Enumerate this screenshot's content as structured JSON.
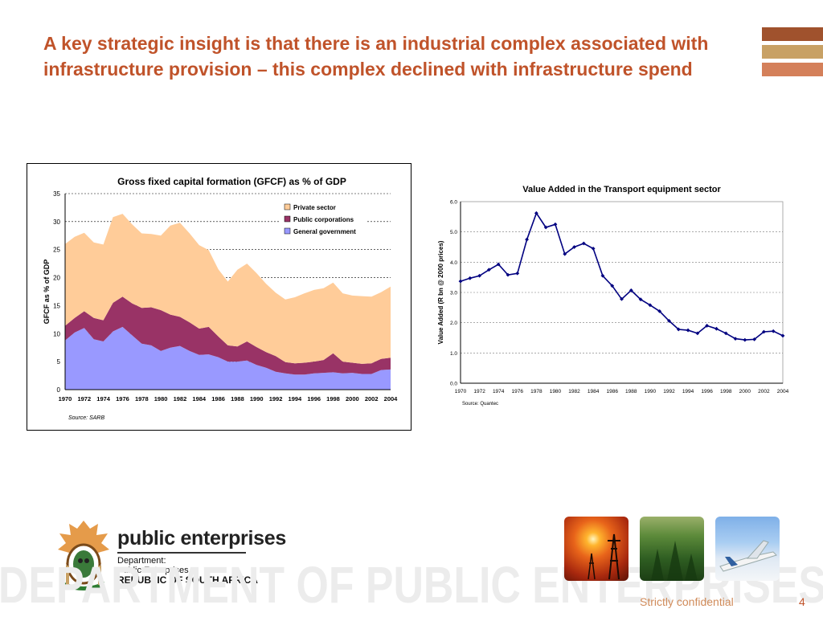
{
  "slide": {
    "title": "A key strategic insight is that there is an industrial complex associated with infrastructure provision – this complex declined with infrastructure spend",
    "page_number": "4",
    "confidentiality": "Strictly confidential",
    "accent_bars": [
      "#a0522d",
      "#c8a165",
      "#d4805a"
    ],
    "title_color": "#c0532a"
  },
  "logo": {
    "brand": "public enterprises",
    "lines": [
      "Department:",
      "Public Enterprises",
      "REPUBLIC OF SOUTH AFRICA"
    ],
    "watermark_text": "DEPARTMENT OF PUBLIC ENTERPRISES"
  },
  "photos": [
    {
      "name": "sunset-pylons-photo"
    },
    {
      "name": "forest-photo"
    },
    {
      "name": "airplane-photo"
    }
  ],
  "chart_data": [
    {
      "type": "area",
      "stacked": true,
      "title": "Gross fixed capital formation (GFCF) as % of GDP",
      "xlabel": "",
      "ylabel": "GFCF as % of GDP",
      "ylim": [
        0,
        35
      ],
      "yticks": [
        0,
        5,
        10,
        15,
        20,
        25,
        30,
        35
      ],
      "xtick_labels": [
        "1970",
        "1972",
        "1974",
        "1976",
        "1978",
        "1980",
        "1982",
        "1984",
        "1986",
        "1988",
        "1990",
        "1992",
        "1994",
        "1996",
        "1998",
        "2000",
        "2002",
        "2004"
      ],
      "x": [
        1970,
        1971,
        1972,
        1973,
        1974,
        1975,
        1976,
        1977,
        1978,
        1979,
        1980,
        1981,
        1982,
        1983,
        1984,
        1985,
        1986,
        1987,
        1988,
        1989,
        1990,
        1991,
        1992,
        1993,
        1994,
        1995,
        1996,
        1997,
        1998,
        1999,
        2000,
        2001,
        2002,
        2003,
        2004
      ],
      "legend_position": "top-right",
      "grid": true,
      "source": "Source: SARB",
      "series": [
        {
          "name": "General government",
          "color": "#9999ff",
          "values": [
            8.8,
            10.2,
            11,
            9,
            8.6,
            10.4,
            11.2,
            9.7,
            8.2,
            7.9,
            6.9,
            7.5,
            7.8,
            6.9,
            6.2,
            6.3,
            5.8,
            5,
            5,
            5.2,
            4.4,
            3.9,
            3.2,
            2.9,
            2.7,
            2.7,
            2.9,
            3,
            3.1,
            2.9,
            3,
            2.8,
            2.8,
            3.5,
            3.6
          ]
        },
        {
          "name": "Public corporations",
          "color": "#993366",
          "values": [
            2.6,
            2.6,
            3,
            3.8,
            3.8,
            5.1,
            5.4,
            5.7,
            6.4,
            6.8,
            7.3,
            5.9,
            5.2,
            5.1,
            4.7,
            4.9,
            3.7,
            2.9,
            2.7,
            3.4,
            3.2,
            2.8,
            2.8,
            2,
            2,
            2.1,
            2.1,
            2.3,
            3.4,
            2.1,
            1.8,
            1.8,
            1.9,
            2,
            2.1
          ]
        },
        {
          "name": "Private sector",
          "color": "#ffcc99",
          "values": [
            14.6,
            14.5,
            14,
            13.5,
            13.5,
            15.3,
            14.8,
            14.1,
            13.3,
            13.1,
            13.3,
            15.9,
            16.8,
            15.9,
            14.9,
            13.7,
            12,
            11.4,
            13.7,
            13.9,
            13.2,
            12.2,
            11.3,
            11.2,
            11.8,
            12.4,
            12.8,
            12.8,
            12.6,
            12.2,
            12,
            12.1,
            11.9,
            11.9,
            12.7
          ]
        }
      ]
    },
    {
      "type": "line",
      "title": "Value Added in the Transport equipment sector",
      "xlabel": "",
      "ylabel": "Value Added (R bn @ 2000 prices)",
      "ylim": [
        0,
        6
      ],
      "yticks": [
        "0.0",
        "1.0",
        "2.0",
        "3.0",
        "4.0",
        "5.0",
        "6.0"
      ],
      "xtick_labels": [
        "1970",
        "1972",
        "1974",
        "1976",
        "1978",
        "1980",
        "1982",
        "1984",
        "1986",
        "1988",
        "1990",
        "1992",
        "1994",
        "1996",
        "1998",
        "2000",
        "2002",
        "2004"
      ],
      "x": [
        1970,
        1971,
        1972,
        1973,
        1974,
        1975,
        1976,
        1977,
        1978,
        1979,
        1980,
        1981,
        1982,
        1983,
        1984,
        1985,
        1986,
        1987,
        1988,
        1989,
        1990,
        1991,
        1992,
        1993,
        1994,
        1995,
        1996,
        1997,
        1998,
        1999,
        2000,
        2001,
        2002,
        2003,
        2004
      ],
      "grid": true,
      "source": "Source: Quantec",
      "series": [
        {
          "color": "#000080",
          "values": [
            3.37,
            3.47,
            3.55,
            3.75,
            3.93,
            3.58,
            3.63,
            4.75,
            5.62,
            5.15,
            5.25,
            4.27,
            4.5,
            4.62,
            4.45,
            3.55,
            3.22,
            2.78,
            3.07,
            2.77,
            2.58,
            2.38,
            2.06,
            1.78,
            1.75,
            1.65,
            1.9,
            1.8,
            1.65,
            1.47,
            1.43,
            1.45,
            1.7,
            1.72,
            1.57
          ]
        }
      ]
    }
  ]
}
